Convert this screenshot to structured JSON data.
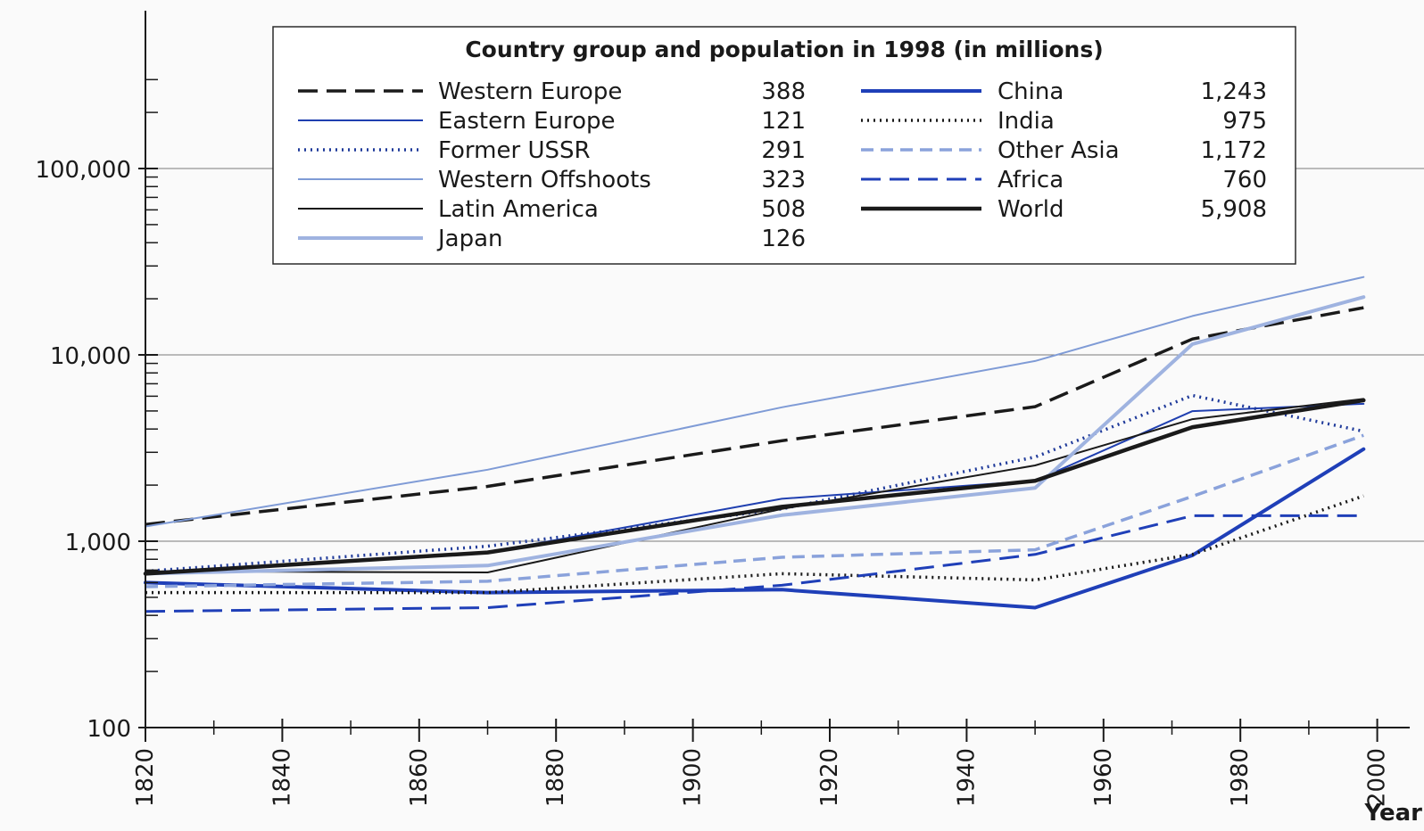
{
  "chart_data": {
    "type": "line",
    "y_scale": "log",
    "title": "Country group and population in 1998 (in millions)",
    "xlabel": "Year",
    "ylabel": "",
    "xlim": [
      1820,
      2000
    ],
    "ylim": [
      100,
      300000
    ],
    "x_ticks": [
      "1820",
      "1840",
      "1860",
      "1880",
      "1900",
      "1920",
      "1940",
      "1960",
      "1980",
      "2000"
    ],
    "x_tick_values": [
      1820,
      1840,
      1860,
      1880,
      1900,
      1920,
      1940,
      1960,
      1980,
      2000
    ],
    "y_ticks": [
      "100",
      "1,000",
      "10,000",
      "100,000"
    ],
    "y_tick_values": [
      100,
      1000,
      10000,
      100000
    ],
    "grid": "horizontal at 1,000 / 10,000 / 100,000",
    "legend_placement": "top-center",
    "series": [
      {
        "name": "Western Europe",
        "population_1998": "388",
        "color": "#1a1a1a",
        "dash": "22 10",
        "width": 3.5,
        "points": [
          [
            1820,
            1230
          ],
          [
            1870,
            1970
          ],
          [
            1913,
            3460
          ],
          [
            1950,
            5270
          ],
          [
            1973,
            12160
          ],
          [
            1998,
            17920
          ]
        ]
      },
      {
        "name": "Eastern Europe",
        "population_1998": "121",
        "color": "#1f3fb0",
        "dash": "",
        "width": 2,
        "points": [
          [
            1820,
            680
          ],
          [
            1870,
            870
          ],
          [
            1913,
            1690
          ],
          [
            1950,
            2110
          ],
          [
            1973,
            4990
          ],
          [
            1998,
            5460
          ]
        ]
      },
      {
        "name": "Former USSR",
        "population_1998": "291",
        "color": "#1f3a9a",
        "dash": "2 5",
        "width": 3.5,
        "points": [
          [
            1820,
            690
          ],
          [
            1870,
            940
          ],
          [
            1913,
            1490
          ],
          [
            1950,
            2830
          ],
          [
            1973,
            6060
          ],
          [
            1998,
            3890
          ]
        ]
      },
      {
        "name": "Western Offshoots",
        "population_1998": "323",
        "color": "#7f9bd6",
        "dash": "",
        "width": 2,
        "points": [
          [
            1820,
            1200
          ],
          [
            1870,
            2420
          ],
          [
            1913,
            5230
          ],
          [
            1950,
            9270
          ],
          [
            1973,
            16170
          ],
          [
            1998,
            26150
          ]
        ]
      },
      {
        "name": "Latin America",
        "population_1998": "508",
        "color": "#1a1a1a",
        "dash": "",
        "width": 2,
        "points": [
          [
            1820,
            690
          ],
          [
            1870,
            680
          ],
          [
            1913,
            1490
          ],
          [
            1950,
            2550
          ],
          [
            1973,
            4520
          ],
          [
            1998,
            5800
          ]
        ]
      },
      {
        "name": "Japan",
        "population_1998": "126",
        "color": "#9fb3e0",
        "dash": "",
        "width": 4,
        "points": [
          [
            1820,
            670
          ],
          [
            1870,
            740
          ],
          [
            1913,
            1380
          ],
          [
            1950,
            1930
          ],
          [
            1973,
            11430
          ],
          [
            1998,
            20410
          ]
        ]
      },
      {
        "name": "China",
        "population_1998": "1,243",
        "color": "#1f3fb8",
        "dash": "",
        "width": 4,
        "points": [
          [
            1820,
            600
          ],
          [
            1870,
            530
          ],
          [
            1913,
            550
          ],
          [
            1950,
            440
          ],
          [
            1973,
            840
          ],
          [
            1998,
            3120
          ]
        ]
      },
      {
        "name": "India",
        "population_1998": "975",
        "color": "#1a1a1a",
        "dash": "2 5",
        "width": 3.5,
        "points": [
          [
            1820,
            530
          ],
          [
            1870,
            530
          ],
          [
            1913,
            670
          ],
          [
            1950,
            620
          ],
          [
            1973,
            850
          ],
          [
            1998,
            1750
          ]
        ]
      },
      {
        "name": "Other Asia",
        "population_1998": "1,172",
        "color": "#8aa2db",
        "dash": "14 8",
        "width": 3.5,
        "points": [
          [
            1820,
            570
          ],
          [
            1870,
            610
          ],
          [
            1913,
            820
          ],
          [
            1950,
            900
          ],
          [
            1973,
            1740
          ],
          [
            1998,
            3700
          ]
        ]
      },
      {
        "name": "Africa",
        "population_1998": "760",
        "color": "#1f3fb8",
        "dash": "22 10",
        "width": 3,
        "points": [
          [
            1820,
            420
          ],
          [
            1870,
            440
          ],
          [
            1913,
            580
          ],
          [
            1950,
            850
          ],
          [
            1973,
            1370
          ],
          [
            1998,
            1370
          ]
        ]
      },
      {
        "name": "World",
        "population_1998": "5,908",
        "color": "#1a1a1a",
        "dash": "",
        "width": 4.5,
        "points": [
          [
            1820,
            670
          ],
          [
            1870,
            870
          ],
          [
            1913,
            1530
          ],
          [
            1950,
            2110
          ],
          [
            1973,
            4090
          ],
          [
            1998,
            5710
          ]
        ]
      }
    ]
  }
}
